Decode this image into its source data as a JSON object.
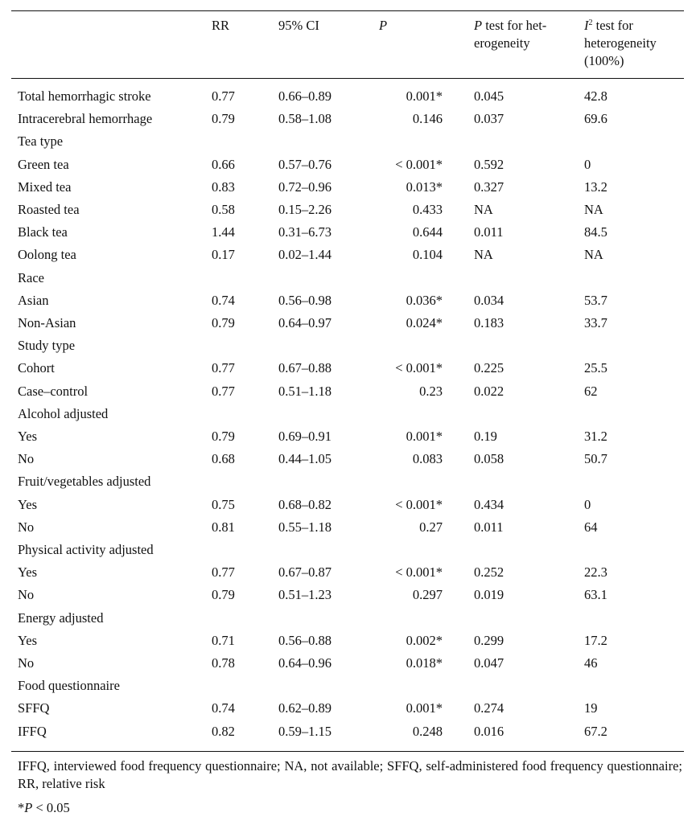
{
  "header": {
    "rr": "RR",
    "ci": "95% CI",
    "p": "P",
    "p_het_italic": "P",
    "p_het_rest1": " test for het-",
    "p_het_rest2": "erogeneity",
    "i2_base": "I",
    "i2_sup": "2",
    "i2_rest1": " test for",
    "i2_rest2": "heterogeneity",
    "i2_rest3": "(100%)"
  },
  "rows": [
    {
      "label": "Total hemorrhagic stroke",
      "rr": "0.77",
      "ci": "0.66–0.89",
      "p": "0.001*",
      "p_het": "0.045",
      "i2": "42.8"
    },
    {
      "label": "Intracerebral hemorrhage",
      "rr": "0.79",
      "ci": "0.58–1.08",
      "p": "0.146",
      "p_het": "0.037",
      "i2": "69.6"
    },
    {
      "label": "Tea type",
      "rr": "",
      "ci": "",
      "p": "",
      "p_het": "",
      "i2": ""
    },
    {
      "label": "Green tea",
      "rr": "0.66",
      "ci": "0.57–0.76",
      "p": "< 0.001*",
      "p_het": "0.592",
      "i2": "0"
    },
    {
      "label": "Mixed tea",
      "rr": "0.83",
      "ci": "0.72–0.96",
      "p": "0.013*",
      "p_het": "0.327",
      "i2": "13.2"
    },
    {
      "label": "Roasted tea",
      "rr": "0.58",
      "ci": "0.15–2.26",
      "p": "0.433",
      "p_het": "NA",
      "i2": "NA"
    },
    {
      "label": "Black tea",
      "rr": "1.44",
      "ci": "0.31–6.73",
      "p": "0.644",
      "p_het": "0.011",
      "i2": "84.5"
    },
    {
      "label": "Oolong tea",
      "rr": "0.17",
      "ci": "0.02–1.44",
      "p": "0.104",
      "p_het": "NA",
      "i2": "NA"
    },
    {
      "label": "Race",
      "rr": "",
      "ci": "",
      "p": "",
      "p_het": "",
      "i2": ""
    },
    {
      "label": "Asian",
      "rr": "0.74",
      "ci": "0.56–0.98",
      "p": "0.036*",
      "p_het": "0.034",
      "i2": "53.7"
    },
    {
      "label": "Non-Asian",
      "rr": "0.79",
      "ci": "0.64–0.97",
      "p": "0.024*",
      "p_het": "0.183",
      "i2": "33.7"
    },
    {
      "label": "Study type",
      "rr": "",
      "ci": "",
      "p": "",
      "p_het": "",
      "i2": ""
    },
    {
      "label": "Cohort",
      "rr": "0.77",
      "ci": "0.67–0.88",
      "p": "< 0.001*",
      "p_het": "0.225",
      "i2": "25.5"
    },
    {
      "label": "Case–control",
      "rr": "0.77",
      "ci": "0.51–1.18",
      "p": "0.23",
      "p_het": "0.022",
      "i2": "62"
    },
    {
      "label": "Alcohol adjusted",
      "rr": "",
      "ci": "",
      "p": "",
      "p_het": "",
      "i2": ""
    },
    {
      "label": "Yes",
      "rr": "0.79",
      "ci": "0.69–0.91",
      "p": "0.001*",
      "p_het": "0.19",
      "i2": "31.2"
    },
    {
      "label": "No",
      "rr": "0.68",
      "ci": "0.44–1.05",
      "p": "0.083",
      "p_het": "0.058",
      "i2": "50.7"
    },
    {
      "label": "Fruit/vegetables adjusted",
      "rr": "",
      "ci": "",
      "p": "",
      "p_het": "",
      "i2": ""
    },
    {
      "label": "Yes",
      "rr": "0.75",
      "ci": "0.68–0.82",
      "p": "< 0.001*",
      "p_het": "0.434",
      "i2": "0"
    },
    {
      "label": "No",
      "rr": "0.81",
      "ci": "0.55–1.18",
      "p": "0.27",
      "p_het": "0.011",
      "i2": "64"
    },
    {
      "label": "Physical activity adjusted",
      "rr": "",
      "ci": "",
      "p": "",
      "p_het": "",
      "i2": ""
    },
    {
      "label": "Yes",
      "rr": "0.77",
      "ci": "0.67–0.87",
      "p": "< 0.001*",
      "p_het": "0.252",
      "i2": "22.3"
    },
    {
      "label": "No",
      "rr": "0.79",
      "ci": "0.51–1.23",
      "p": "0.297",
      "p_het": "0.019",
      "i2": "63.1"
    },
    {
      "label": "Energy adjusted",
      "rr": "",
      "ci": "",
      "p": "",
      "p_het": "",
      "i2": ""
    },
    {
      "label": "Yes",
      "rr": "0.71",
      "ci": "0.56–0.88",
      "p": "0.002*",
      "p_het": "0.299",
      "i2": "17.2"
    },
    {
      "label": "No",
      "rr": "0.78",
      "ci": "0.64–0.96",
      "p": "0.018*",
      "p_het": "0.047",
      "i2": "46"
    },
    {
      "label": "Food questionnaire",
      "rr": "",
      "ci": "",
      "p": "",
      "p_het": "",
      "i2": ""
    },
    {
      "label": "SFFQ",
      "rr": "0.74",
      "ci": "0.62–0.89",
      "p": "0.001*",
      "p_het": "0.274",
      "i2": "19"
    },
    {
      "label": "IFFQ",
      "rr": "0.82",
      "ci": "0.59–1.15",
      "p": "0.248",
      "p_het": "0.016",
      "i2": "67.2"
    }
  ],
  "footnote": "IFFQ, interviewed food frequency questionnaire; NA, not available; SFFQ, self-administered food frequency questionnaire; RR, relative risk",
  "significance": {
    "star": "*",
    "p": "P",
    "rest": " < 0.05"
  }
}
